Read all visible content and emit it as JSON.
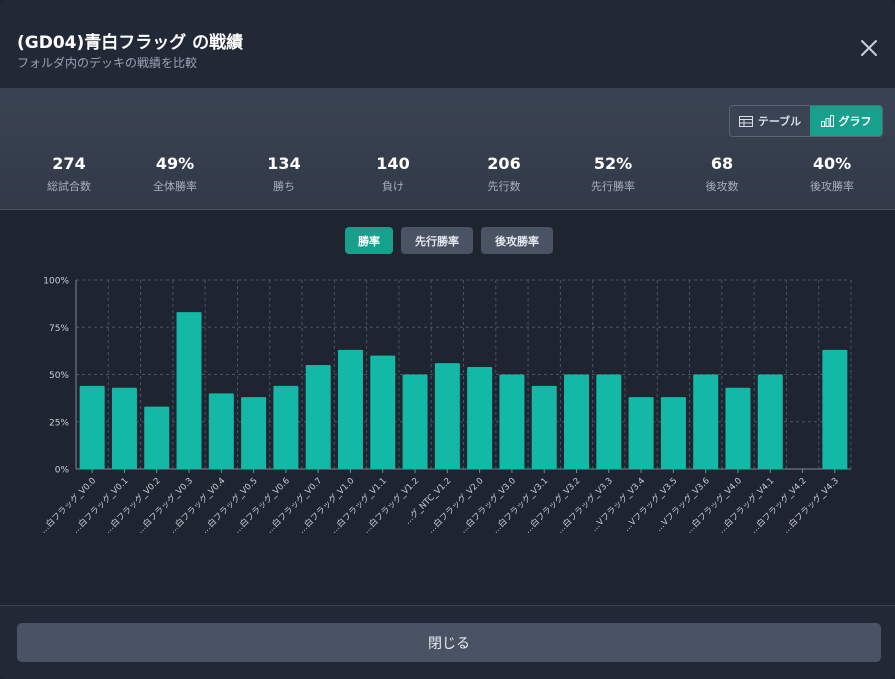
{
  "header": {
    "title": "(GD04)青白フラッグ の戦績",
    "subtitle": "フォルダ内のデッキの戦績を比較",
    "close_icon": "close-icon"
  },
  "view_toggle": {
    "table_label": "テーブル",
    "graph_label": "グラフ",
    "selected": "グラフ"
  },
  "stats": [
    {
      "value": "274",
      "label": "総試合数"
    },
    {
      "value": "49%",
      "label": "全体勝率"
    },
    {
      "value": "134",
      "label": "勝ち"
    },
    {
      "value": "140",
      "label": "負け"
    },
    {
      "value": "206",
      "label": "先行数"
    },
    {
      "value": "52%",
      "label": "先行勝率"
    },
    {
      "value": "68",
      "label": "後攻数"
    },
    {
      "value": "40%",
      "label": "後攻勝率"
    }
  ],
  "metric_tabs": [
    {
      "label": "勝率",
      "active": true
    },
    {
      "label": "先行勝率",
      "active": false
    },
    {
      "label": "後攻勝率",
      "active": false
    }
  ],
  "colors": {
    "accent": "#17a08c",
    "bar": "#14b8a6"
  },
  "chart_data": {
    "type": "bar",
    "categories": [
      "...白フラッグ_V0.0",
      "...白フラッグ_V0.1",
      "...白フラッグ_V0.2",
      "...白フラッグ_V0.3",
      "...白フラッグ_V0.4",
      "...白フラッグ_V0.5",
      "...白フラッグ_V0.6",
      "...白フラッグ_V0.7",
      "...白フラッグ_V1.0",
      "...白フラッグ_V1.1",
      "...白フラッグ_V1.2",
      "...グ_NTC_V1.2",
      "...白フラッグ_V2.0",
      "...白フラッグ_V3.0",
      "...白フラッグ_V3.1",
      "...白フラッグ_V3.2",
      "...白フラッグ_V3.3",
      "...Vフラッグ_V3.4",
      "...Vフラッグ_V3.5",
      "...Vフラッグ_V3.6",
      "...白フラッグ_V4.0",
      "...白フラッグ_V4.1",
      "...白フラッグ_V4.2",
      "...白フラッグ_V4.3"
    ],
    "values": [
      44,
      43,
      33,
      83,
      40,
      38,
      44,
      55,
      63,
      60,
      50,
      56,
      54,
      50,
      44,
      50,
      50,
      38,
      38,
      50,
      43,
      50,
      0,
      63
    ],
    "ylim": [
      0,
      100
    ],
    "yticks": [
      "0%",
      "25%",
      "50%",
      "75%",
      "100%"
    ],
    "ytick_values": [
      0,
      25,
      50,
      75,
      100
    ],
    "grid": true
  },
  "footer": {
    "close_label": "閉じる"
  }
}
